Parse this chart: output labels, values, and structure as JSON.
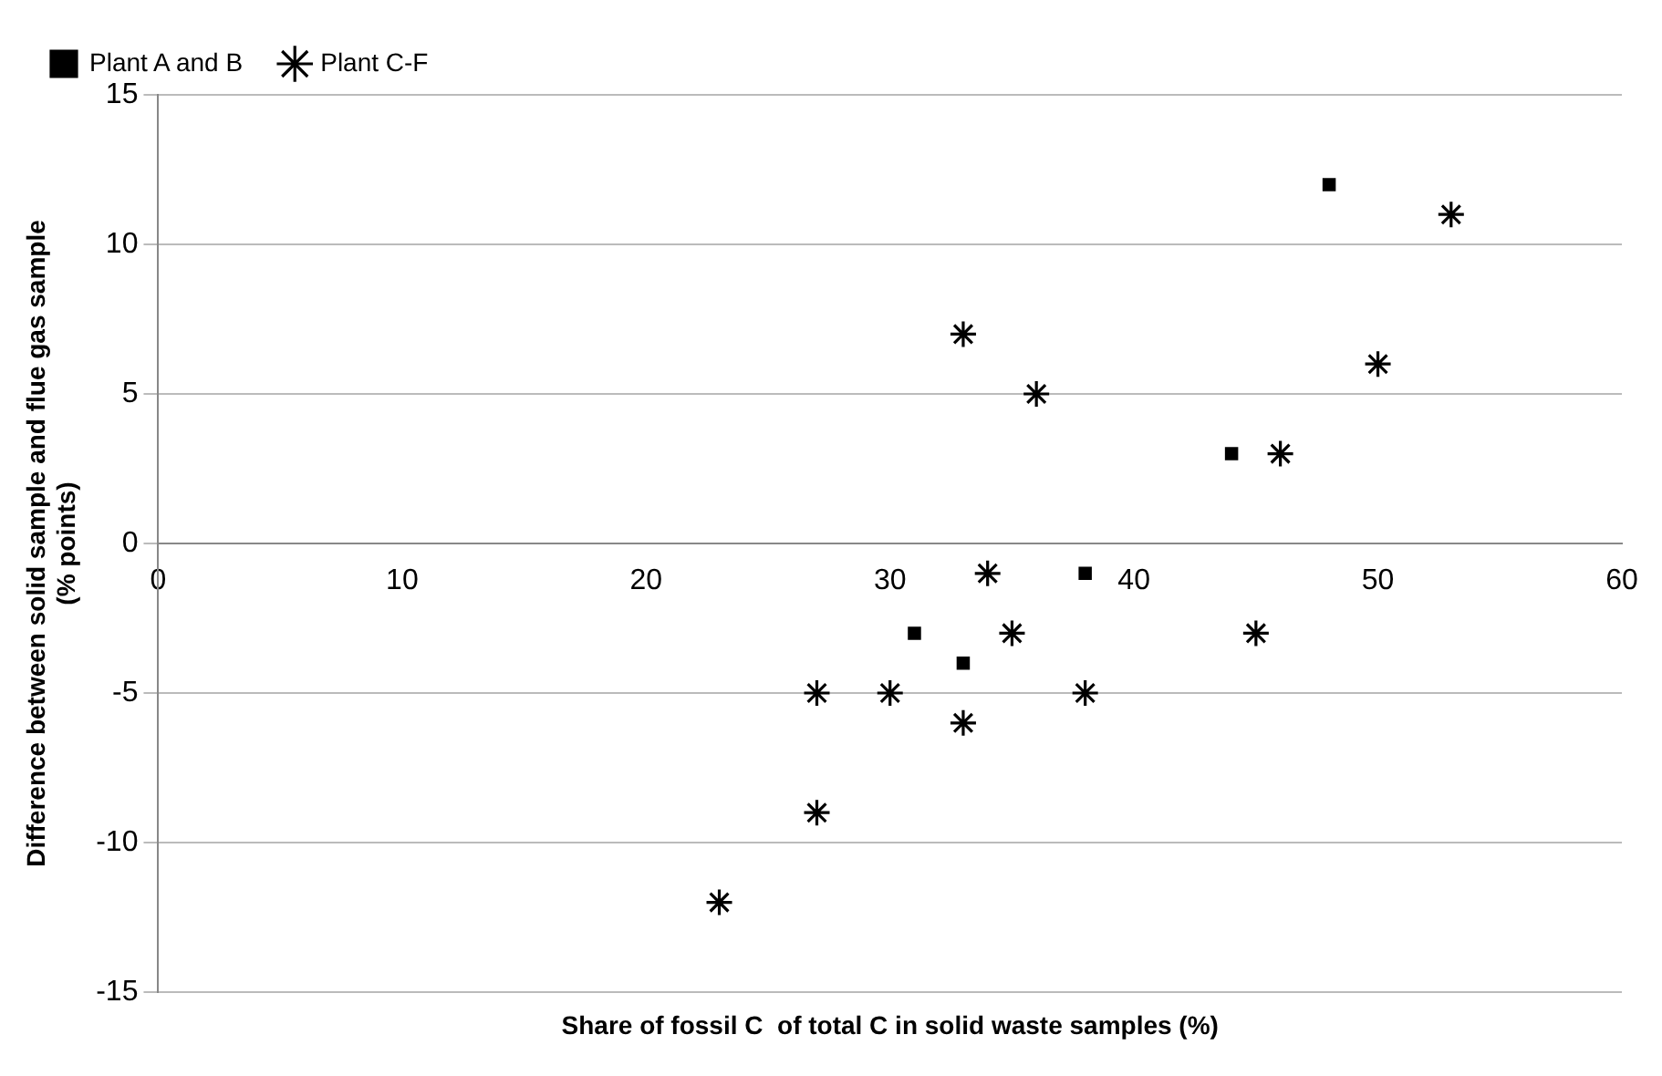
{
  "chart_data": {
    "type": "scatter",
    "xlabel": "Share of fossil C  of total C in solid waste samples (%)",
    "ylabel": "Difference between solid sample and flue gas sample\n(% points)",
    "xlim": [
      0,
      60
    ],
    "xticks": [
      0,
      10,
      20,
      30,
      40,
      50,
      60
    ],
    "ylim": [
      -15,
      15
    ],
    "yticks": [
      -15,
      -10,
      -5,
      0,
      5,
      10,
      15
    ],
    "grid": "y",
    "legend": "top left",
    "series": [
      {
        "name": "Plant A and B",
        "color": "#000000",
        "marker": "square",
        "x": [
          48,
          44,
          38,
          31,
          33
        ],
        "values": [
          12,
          3,
          -1,
          -3,
          -4
        ]
      },
      {
        "name": "Plant C-F",
        "color": "#000000",
        "marker": "cross",
        "x": [
          53,
          33,
          36,
          50,
          46,
          34,
          35,
          45,
          27,
          30,
          38,
          33,
          27,
          23
        ],
        "values": [
          11,
          7,
          5,
          6,
          3,
          -1,
          -3,
          -3,
          -5,
          -5,
          -5,
          -6,
          -9,
          -12
        ]
      }
    ]
  }
}
